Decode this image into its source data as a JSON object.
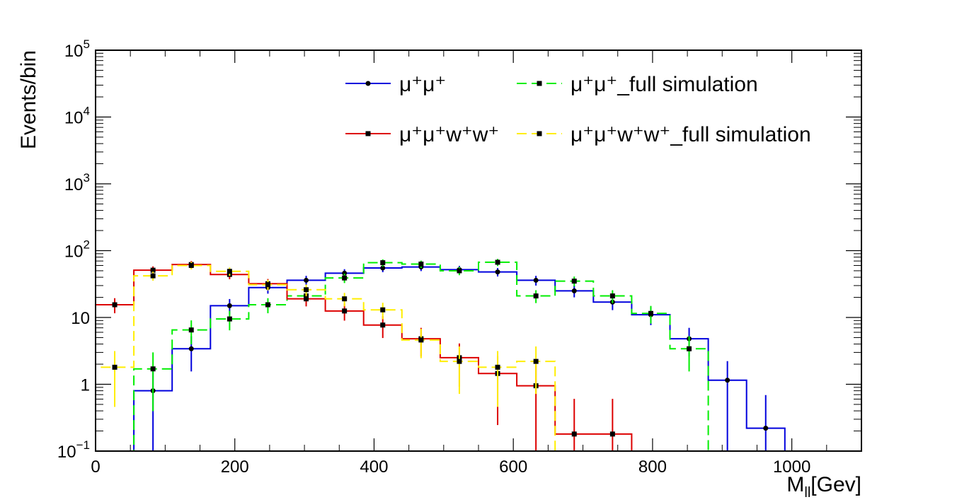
{
  "chart_data": {
    "type": "histogram",
    "title": "",
    "xlabel": "M",
    "xlabel_sub": "ll",
    "xlabel_unit": "[Gev]",
    "ylabel": "Events/bin",
    "yscale": "log",
    "xlim": [
      0,
      1100
    ],
    "ylim": [
      0.1,
      100000
    ],
    "bin_width": 55,
    "x_ticks": [
      "0",
      "200",
      "400",
      "600",
      "800",
      "1000"
    ],
    "x_tick_values": [
      0,
      200,
      400,
      600,
      800,
      1000
    ],
    "y_ticks": [
      {
        "value": 0.1,
        "base": "10",
        "exp": "−1"
      },
      {
        "value": 1,
        "base": "1",
        "exp": ""
      },
      {
        "value": 10,
        "base": "10",
        "exp": ""
      },
      {
        "value": 100,
        "base": "10",
        "exp": "2"
      },
      {
        "value": 1000,
        "base": "10",
        "exp": "3"
      },
      {
        "value": 10000,
        "base": "10",
        "exp": "4"
      },
      {
        "value": 100000,
        "base": "10",
        "exp": "5"
      }
    ],
    "series": [
      {
        "name": "μ⁺μ⁺",
        "color": "#0000dd",
        "style": "solid",
        "marker": "circle",
        "values": [
          0,
          0.8,
          3.4,
          15,
          28,
          36,
          46,
          55,
          57,
          52,
          48,
          36,
          25,
          17,
          11,
          4.8,
          1.15,
          0.22,
          0,
          0
        ]
      },
      {
        "name": "μ⁺μ⁺_full simulation",
        "color": "#00ee00",
        "style": "dashed",
        "marker": "square",
        "values": [
          0,
          1.7,
          6.5,
          9.5,
          15.5,
          21,
          39,
          66,
          63,
          50,
          67,
          21,
          35,
          21,
          11.5,
          3.4,
          0,
          0,
          0,
          0
        ]
      },
      {
        "name": "μ⁺μ⁺w⁺w⁺",
        "color": "#dd0000",
        "style": "solid",
        "marker": "square",
        "values": [
          15.5,
          51,
          62,
          44,
          32,
          19,
          12.5,
          7.7,
          4.8,
          2.5,
          1.45,
          0.95,
          0.18,
          0.18,
          0,
          0,
          0,
          0,
          0,
          0
        ]
      },
      {
        "name": "μ⁺μ⁺w⁺w⁺_full simulation",
        "color": "#ffee00",
        "style": "dashed",
        "marker": "square",
        "values": [
          1.8,
          42,
          60,
          49,
          31,
          26,
          19,
          13,
          4.6,
          2.2,
          1.8,
          2.2,
          0,
          0,
          0,
          0,
          0,
          0,
          0,
          0
        ]
      }
    ],
    "legend": {
      "placement": "top-center",
      "entries": [
        "μ⁺μ⁺",
        "μ⁺μ⁺_full simulation",
        "μ⁺μ⁺w⁺w⁺",
        "μ⁺μ⁺w⁺w⁺_full simulation"
      ]
    }
  }
}
